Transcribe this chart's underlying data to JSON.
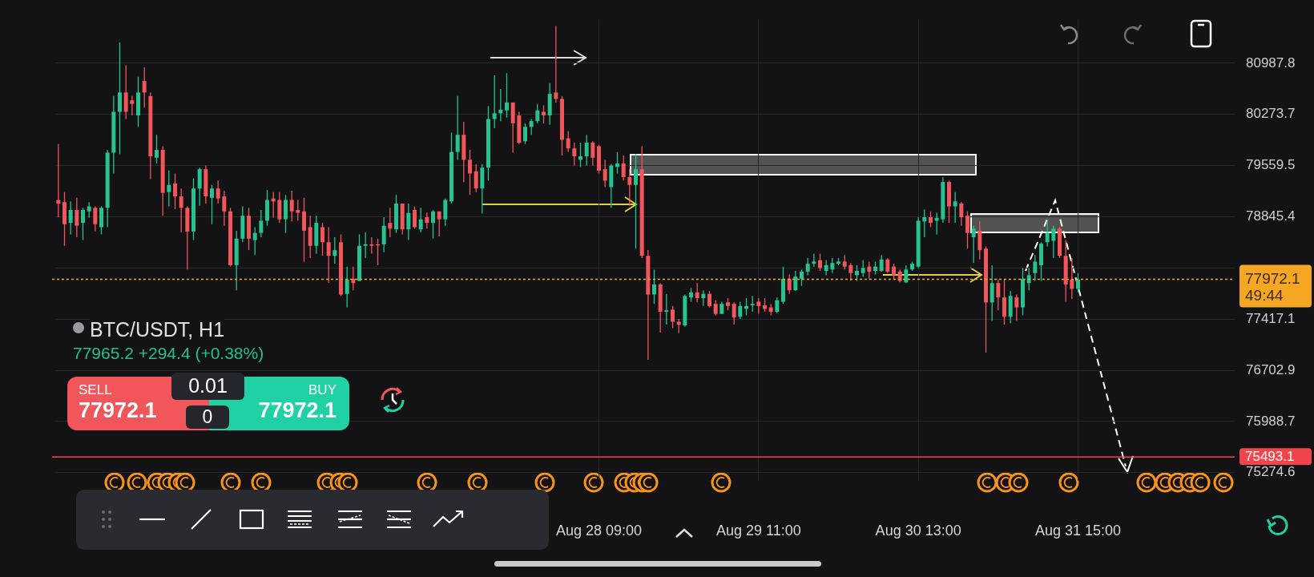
{
  "chart_data": {
    "type": "candlestick",
    "title": "BTC/USDT, H1",
    "subtitle": "77965.2 +294.4 (+0.38%)",
    "annotations": [
      "49:44",
      "SELL",
      "77972.1",
      "0.01",
      "0",
      "BUY",
      "77972.1"
    ],
    "categories": [
      null,
      null,
      null,
      null,
      null,
      null,
      null,
      null,
      null,
      null,
      null,
      null,
      null,
      null,
      null,
      null,
      null,
      null,
      null,
      null,
      null,
      null,
      null,
      null,
      null,
      null,
      null,
      null,
      null,
      null,
      null,
      null,
      null,
      null,
      null,
      null,
      null,
      null,
      null,
      null,
      null,
      null,
      null,
      null,
      null,
      null,
      null,
      null,
      null,
      null,
      null,
      null,
      null,
      null,
      null,
      null,
      null,
      null,
      null,
      null,
      null,
      null,
      null,
      null,
      null,
      null,
      null,
      null,
      null,
      null,
      null,
      null,
      null,
      null,
      null,
      null,
      null,
      null,
      null,
      null,
      null,
      null,
      null,
      null,
      null,
      null,
      null,
      null,
      "Aug 28 09:00",
      null,
      null,
      null,
      null,
      null,
      null,
      null,
      null,
      null,
      null,
      null,
      null,
      null,
      null,
      null,
      null,
      null,
      null,
      null,
      null,
      null,
      null,
      null,
      null,
      null,
      "Aug 29 11:00",
      null,
      null,
      null,
      null,
      null,
      null,
      null,
      null,
      null,
      null,
      null,
      null,
      null,
      null,
      null,
      null,
      null,
      null,
      null,
      null,
      null,
      null,
      null,
      null,
      null,
      "Aug 30 13:00",
      null,
      null,
      null,
      null,
      null,
      null,
      null,
      null,
      null,
      null,
      null,
      null,
      null,
      null,
      null,
      null,
      null,
      null,
      null,
      null,
      null,
      null,
      null,
      null,
      null,
      "Aug 31 15:00",
      null,
      null,
      null,
      null,
      null,
      null,
      null,
      null,
      null,
      null,
      null,
      null,
      null,
      null,
      null,
      null,
      null,
      null,
      null,
      null,
      null,
      null,
      null,
      null,
      null
    ],
    "ohlc": [
      [
        79080,
        79860,
        78840,
        79030
      ],
      [
        79050,
        79190,
        78440,
        78740
      ],
      [
        78760,
        79060,
        78600,
        78940
      ],
      [
        78940,
        79110,
        78560,
        78720
      ],
      [
        78760,
        78970,
        78520,
        78940
      ],
      [
        78920,
        79050,
        78830,
        78990
      ],
      [
        78970,
        78990,
        78640,
        78740
      ],
      [
        78700,
        78990,
        78600,
        78970
      ],
      [
        78970,
        79780,
        78700,
        79740
      ],
      [
        79740,
        80530,
        79450,
        80310
      ],
      [
        80310,
        81280,
        79720,
        80580
      ],
      [
        80580,
        80960,
        80210,
        80310
      ],
      [
        80470,
        80530,
        80260,
        80420
      ],
      [
        80260,
        80800,
        80100,
        80580
      ],
      [
        80740,
        80930,
        80370,
        80580
      ],
      [
        80530,
        80580,
        79370,
        79690
      ],
      [
        79670,
        79990,
        79590,
        79780
      ],
      [
        79780,
        79830,
        78860,
        79180
      ],
      [
        79190,
        79490,
        78990,
        79290
      ],
      [
        79310,
        79450,
        78950,
        79130
      ],
      [
        79130,
        79240,
        78630,
        78970
      ],
      [
        78970,
        78990,
        78110,
        78640
      ],
      [
        78640,
        79380,
        78520,
        79240
      ],
      [
        79240,
        79530,
        79000,
        79510
      ],
      [
        79510,
        79560,
        79030,
        79130
      ],
      [
        79110,
        79290,
        78740,
        79240
      ],
      [
        79240,
        79350,
        79030,
        79100
      ],
      [
        79130,
        79210,
        78720,
        78920
      ],
      [
        78920,
        78970,
        78150,
        78170
      ],
      [
        78170,
        78650,
        77820,
        78540
      ],
      [
        78540,
        78990,
        78490,
        78860
      ],
      [
        78860,
        78970,
        78380,
        78540
      ],
      [
        78520,
        78700,
        78310,
        78620
      ],
      [
        78620,
        78940,
        78560,
        78790
      ],
      [
        78790,
        79220,
        78720,
        79080
      ],
      [
        79100,
        79190,
        78830,
        79060
      ],
      [
        79080,
        79190,
        78760,
        78810
      ],
      [
        78810,
        79150,
        78620,
        79080
      ],
      [
        79080,
        79210,
        78780,
        78920
      ],
      [
        78940,
        79080,
        78790,
        78900
      ],
      [
        78920,
        79110,
        78220,
        78650
      ],
      [
        78700,
        78860,
        78270,
        78440
      ],
      [
        78440,
        78860,
        78330,
        78760
      ],
      [
        78700,
        78760,
        78300,
        78490
      ],
      [
        78490,
        78700,
        77920,
        78300
      ],
      [
        78300,
        78560,
        78190,
        78380
      ],
      [
        78490,
        78600,
        77740,
        77760
      ],
      [
        77770,
        78150,
        77580,
        77970
      ],
      [
        77980,
        78150,
        77820,
        77920
      ],
      [
        77950,
        78600,
        77950,
        78440
      ],
      [
        78440,
        78630,
        78270,
        78460
      ],
      [
        78460,
        78560,
        78330,
        78440
      ],
      [
        78460,
        78540,
        78170,
        78450
      ],
      [
        78460,
        78840,
        78350,
        78720
      ],
      [
        78760,
        78970,
        78560,
        78680
      ],
      [
        78670,
        79150,
        78620,
        79030
      ],
      [
        79030,
        79030,
        78600,
        78670
      ],
      [
        78670,
        79030,
        78520,
        78900
      ],
      [
        78940,
        78990,
        78680,
        78700
      ],
      [
        78670,
        78970,
        78630,
        78810
      ],
      [
        78840,
        78900,
        78680,
        78760
      ],
      [
        78760,
        78940,
        78540,
        78920
      ],
      [
        78920,
        78920,
        78570,
        78810
      ],
      [
        78810,
        79100,
        78720,
        79080
      ],
      [
        79060,
        80020,
        79030,
        79750
      ],
      [
        79750,
        80530,
        79640,
        79990
      ],
      [
        79990,
        80170,
        79330,
        79640
      ],
      [
        79640,
        79780,
        79150,
        79450
      ],
      [
        79480,
        79580,
        79190,
        79240
      ],
      [
        79240,
        79580,
        78890,
        79530
      ],
      [
        79530,
        80390,
        79350,
        80210
      ],
      [
        80210,
        80820,
        80080,
        80290
      ],
      [
        80290,
        80630,
        80180,
        80340
      ],
      [
        80330,
        80850,
        80230,
        80440
      ],
      [
        80440,
        80440,
        79740,
        80150
      ],
      [
        80260,
        80310,
        79860,
        79880
      ],
      [
        79900,
        80150,
        79860,
        80100
      ],
      [
        80100,
        80210,
        79990,
        80180
      ],
      [
        80180,
        80420,
        80150,
        80330
      ],
      [
        80310,
        80400,
        80150,
        80260
      ],
      [
        80260,
        80710,
        80130,
        80560
      ],
      [
        80580,
        81510,
        80440,
        80490
      ],
      [
        80490,
        80530,
        79700,
        79920
      ],
      [
        79940,
        80040,
        79750,
        79800
      ],
      [
        79800,
        79880,
        79560,
        79690
      ],
      [
        79640,
        79880,
        79540,
        79690
      ],
      [
        79690,
        79990,
        79560,
        79880
      ],
      [
        79880,
        79900,
        79560,
        79670
      ],
      [
        79830,
        79850,
        79450,
        79490
      ],
      [
        79510,
        79640,
        79260,
        79350
      ],
      [
        79260,
        79580,
        78970,
        79560
      ],
      [
        79540,
        79750,
        79450,
        79590
      ],
      [
        79590,
        79700,
        79350,
        79400
      ],
      [
        79400,
        79510,
        79000,
        79290
      ],
      [
        79290,
        79720,
        78400,
        79510
      ],
      [
        79510,
        79830,
        78270,
        78300
      ],
      [
        78300,
        78380,
        76850,
        77760
      ],
      [
        77760,
        78110,
        77630,
        77900
      ],
      [
        77900,
        77920,
        77230,
        77520
      ],
      [
        77520,
        77770,
        77340,
        77540
      ],
      [
        77550,
        77600,
        77290,
        77380
      ],
      [
        77380,
        77420,
        77220,
        77340
      ],
      [
        77330,
        77760,
        77310,
        77740
      ],
      [
        77720,
        77850,
        77660,
        77790
      ],
      [
        77790,
        77920,
        77650,
        77710
      ],
      [
        77710,
        77820,
        77600,
        77770
      ],
      [
        77770,
        77810,
        77580,
        77600
      ],
      [
        77630,
        77680,
        77470,
        77490
      ],
      [
        77490,
        77660,
        77490,
        77630
      ],
      [
        77650,
        77710,
        77540,
        77600
      ],
      [
        77630,
        77650,
        77340,
        77440
      ],
      [
        77450,
        77660,
        77420,
        77600
      ],
      [
        77560,
        77710,
        77470,
        77600
      ],
      [
        77610,
        77740,
        77520,
        77630
      ],
      [
        77660,
        77710,
        77490,
        77600
      ],
      [
        77610,
        77710,
        77520,
        77560
      ],
      [
        77580,
        77630,
        77470,
        77520
      ],
      [
        77520,
        77720,
        77500,
        77680
      ],
      [
        77660,
        78150,
        77630,
        77980
      ],
      [
        77980,
        78040,
        77770,
        77820
      ],
      [
        77820,
        78090,
        77810,
        78010
      ],
      [
        77980,
        78110,
        77880,
        78080
      ],
      [
        78080,
        78270,
        78030,
        78190
      ],
      [
        78190,
        78330,
        78150,
        78220
      ],
      [
        78240,
        78330,
        78090,
        78130
      ],
      [
        78090,
        78240,
        78030,
        78170
      ],
      [
        78110,
        78270,
        78060,
        78200
      ],
      [
        78190,
        78270,
        78170,
        78220
      ],
      [
        78220,
        78310,
        78110,
        78150
      ],
      [
        78170,
        78200,
        77950,
        78060
      ],
      [
        78030,
        78170,
        77950,
        78090
      ],
      [
        78060,
        78240,
        78010,
        78130
      ],
      [
        78150,
        78220,
        77980,
        78080
      ],
      [
        78090,
        78220,
        78040,
        78150
      ],
      [
        78090,
        78310,
        78080,
        78250
      ],
      [
        78250,
        78270,
        78060,
        78080
      ],
      [
        78150,
        78190,
        77980,
        78030
      ],
      [
        78080,
        78110,
        77930,
        77950
      ],
      [
        77930,
        78170,
        77920,
        78110
      ],
      [
        78110,
        78220,
        78090,
        78190
      ],
      [
        78150,
        78840,
        78130,
        78790
      ],
      [
        78780,
        78950,
        78560,
        78840
      ],
      [
        78840,
        78920,
        78700,
        78760
      ],
      [
        78790,
        78900,
        78600,
        78830
      ],
      [
        78810,
        79400,
        78760,
        79330
      ],
      [
        79330,
        79350,
        78760,
        78990
      ],
      [
        78990,
        79190,
        78760,
        79060
      ],
      [
        79030,
        79050,
        78720,
        78840
      ],
      [
        78860,
        78920,
        78400,
        78620
      ],
      [
        78560,
        78720,
        78200,
        78680
      ],
      [
        78650,
        78780,
        78250,
        78380
      ],
      [
        78400,
        78430,
        76950,
        77650
      ],
      [
        77650,
        78170,
        77390,
        77920
      ],
      [
        77920,
        77970,
        77540,
        77720
      ],
      [
        77720,
        77970,
        77340,
        77450
      ],
      [
        77450,
        77810,
        77360,
        77740
      ],
      [
        77720,
        77760,
        77390,
        77580
      ],
      [
        77580,
        78130,
        77470,
        77980
      ],
      [
        77920,
        78130,
        77820,
        78030
      ],
      [
        78060,
        78310,
        77950,
        78220
      ],
      [
        78170,
        78490,
        77950,
        78470
      ],
      [
        78490,
        78790,
        78430,
        78620
      ],
      [
        78510,
        78720,
        78270,
        78680
      ],
      [
        78680,
        78700,
        78270,
        78300
      ],
      [
        78300,
        78520,
        77660,
        77900
      ],
      [
        77970,
        78270,
        77700,
        77840
      ],
      [
        77840,
        78060,
        77790,
        77970
      ],
      null,
      null,
      null,
      null,
      null,
      null,
      null,
      null,
      null,
      null,
      null,
      null,
      null,
      null,
      null,
      null,
      null,
      null,
      null,
      null,
      null,
      null,
      null,
      null,
      null
    ],
    "ylim": [
      75160,
      81600
    ],
    "yticks": [
      80987.8,
      80273.7,
      79559.5,
      78845.4,
      {
        "value": 78131.2,
        "label": null
      },
      77417.1,
      76702.9,
      75988.7,
      75274.6
    ],
    "ref_lines": [
      {
        "axis": "y",
        "value": 77972.1,
        "label": "77972.1",
        "color": "#f5a623",
        "line_style": "dotted"
      },
      {
        "axis": "y",
        "value": 75493.1,
        "label": "75493.1",
        "color": "#f0464b",
        "line_style": "solid"
      }
    ],
    "grid": true
  }
}
